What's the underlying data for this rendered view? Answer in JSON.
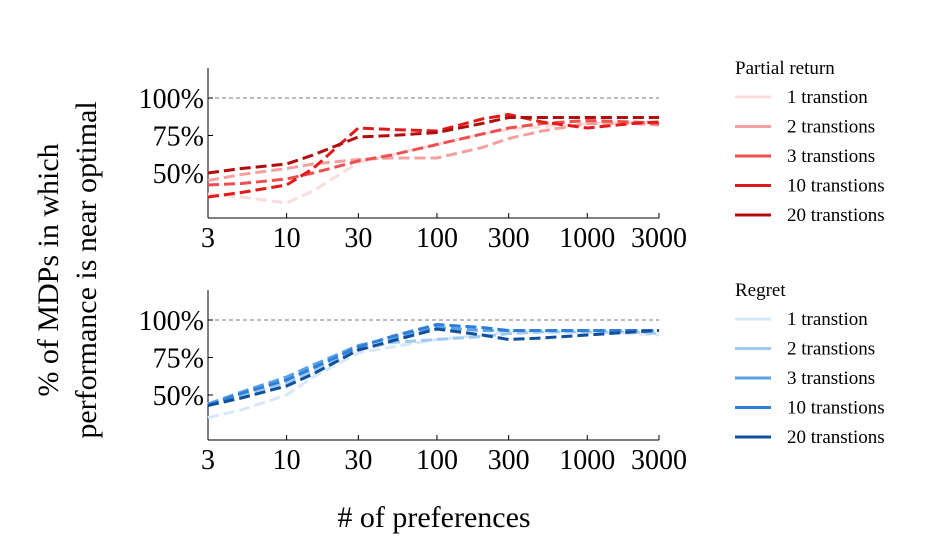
{
  "figure": {
    "ylabel_lines": [
      "% of MDPs in which",
      "performance is near optimal"
    ],
    "xlabel": "# of preferences"
  },
  "chart_data": [
    {
      "type": "line",
      "panel": "top",
      "x_scale": "log",
      "x": [
        3,
        5,
        10,
        15,
        30,
        50,
        100,
        200,
        300,
        500,
        1000,
        2000,
        3000
      ],
      "xticks": [
        3,
        10,
        30,
        100,
        300,
        1000,
        3000
      ],
      "xtick_labels": [
        "3",
        "10",
        "30",
        "100",
        "300",
        "1000",
        "3000"
      ],
      "yticks": [
        50,
        75,
        100
      ],
      "ytick_labels": [
        "50%",
        "75%",
        "100%"
      ],
      "ylim": [
        20,
        120
      ],
      "reference_line": 100,
      "legend_title": "Partial return",
      "legend_position": "right",
      "series": [
        {
          "name": "1 transtion",
          "color": "#fcdcdc",
          "values": [
            36,
            34,
            30,
            38,
            57,
            62,
            69,
            76,
            79,
            81,
            83,
            84,
            84
          ]
        },
        {
          "name": "2 transtions",
          "color": "#f4a0a0",
          "values": [
            45,
            49,
            53,
            56,
            59,
            60,
            60,
            67,
            73,
            78,
            83,
            83,
            82
          ]
        },
        {
          "name": "3 transtions",
          "color": "#ec5050",
          "values": [
            42,
            43,
            46,
            50,
            58,
            62,
            69,
            76,
            80,
            83,
            85,
            84,
            83
          ]
        },
        {
          "name": "10 transtions",
          "color": "#e11a1a",
          "values": [
            34,
            37,
            42,
            53,
            80,
            79,
            78,
            86,
            89,
            84,
            80,
            83,
            84
          ]
        },
        {
          "name": "20 transtions",
          "color": "#b00d0d",
          "values": [
            50,
            53,
            56,
            62,
            74,
            75,
            77,
            83,
            87,
            87,
            87,
            87,
            87
          ]
        }
      ]
    },
    {
      "type": "line",
      "panel": "bottom",
      "x_scale": "log",
      "x": [
        3,
        5,
        10,
        15,
        30,
        50,
        100,
        200,
        300,
        500,
        1000,
        2000,
        3000
      ],
      "xticks": [
        3,
        10,
        30,
        100,
        300,
        1000,
        3000
      ],
      "xtick_labels": [
        "3",
        "10",
        "30",
        "100",
        "300",
        "1000",
        "3000"
      ],
      "yticks": [
        50,
        75,
        100
      ],
      "ytick_labels": [
        "50%",
        "75%",
        "100%"
      ],
      "ylim": [
        20,
        120
      ],
      "reference_line": 100,
      "legend_title": "Regret",
      "legend_position": "right",
      "series": [
        {
          "name": "1 transtion",
          "color": "#d6e8f8",
          "values": [
            35,
            40,
            50,
            62,
            78,
            82,
            87,
            90,
            92,
            92,
            92,
            91,
            90
          ]
        },
        {
          "name": "2 transtions",
          "color": "#9ec9f0",
          "values": [
            44,
            50,
            58,
            66,
            80,
            85,
            87,
            89,
            91,
            92,
            92,
            92,
            91
          ]
        },
        {
          "name": "3 transtions",
          "color": "#5aa2e8",
          "values": [
            44,
            52,
            62,
            70,
            83,
            88,
            95,
            93,
            93,
            93,
            93,
            93,
            93
          ]
        },
        {
          "name": "10 transtions",
          "color": "#2f7fd6",
          "values": [
            43,
            51,
            60,
            68,
            82,
            89,
            97,
            95,
            93,
            93,
            93,
            93,
            93
          ]
        },
        {
          "name": "20 transtions",
          "color": "#0e4f9e",
          "values": [
            43,
            48,
            56,
            64,
            80,
            86,
            94,
            90,
            87,
            88,
            90,
            92,
            93
          ]
        }
      ]
    }
  ]
}
